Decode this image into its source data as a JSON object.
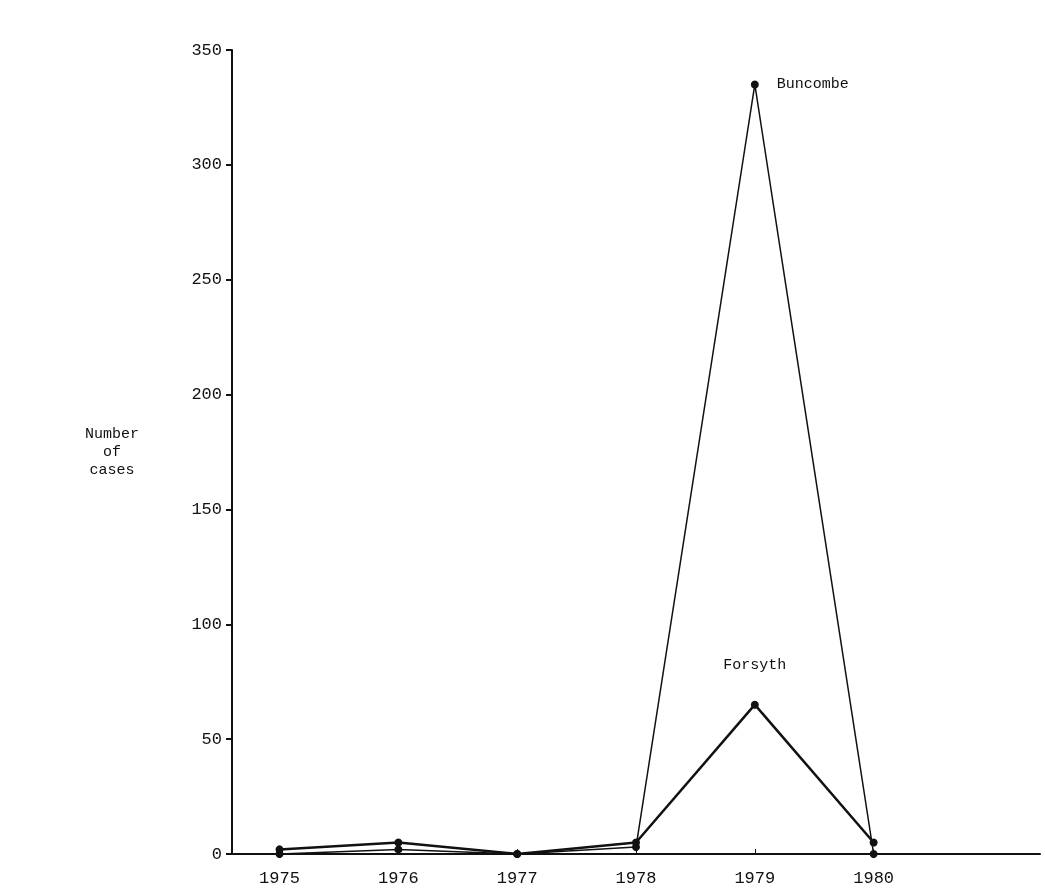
{
  "chart_data": {
    "type": "line",
    "ylabel": "Number\nof\ncases",
    "x": [
      1975,
      1976,
      1977,
      1978,
      1979,
      1980
    ],
    "xlim": [
      1974.6,
      1981.4
    ],
    "xticks": [
      1975,
      1976,
      1977,
      1978,
      1979,
      1980
    ],
    "ylim": [
      0,
      350
    ],
    "yticks": [
      0,
      50,
      100,
      150,
      200,
      250,
      300,
      350
    ],
    "grid": false,
    "legend": false,
    "marker": "circle",
    "line_style": "solid",
    "series": [
      {
        "name": "Buncombe",
        "color": "#111111",
        "values": [
          0,
          2,
          0,
          3,
          335,
          0
        ]
      },
      {
        "name": "Forsyth",
        "color": "#111111",
        "values": [
          2,
          5,
          0,
          5,
          65,
          5
        ]
      }
    ]
  }
}
